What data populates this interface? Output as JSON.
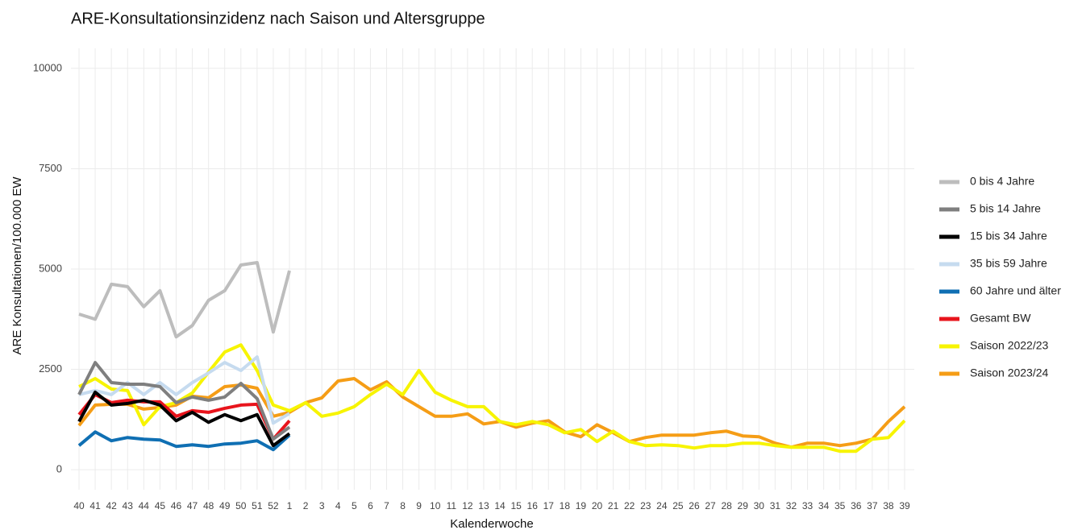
{
  "chart_data": {
    "type": "line",
    "title": "ARE-Konsultationsinzidenz nach Saison und Altersgruppe",
    "x_label": "Kalenderwoche",
    "y_label": "ARE Konsultationen/100.000 EW",
    "categories": [
      "40",
      "41",
      "42",
      "43",
      "44",
      "45",
      "46",
      "47",
      "48",
      "49",
      "50",
      "51",
      "52",
      "1",
      "2",
      "3",
      "4",
      "5",
      "6",
      "7",
      "8",
      "9",
      "10",
      "11",
      "12",
      "13",
      "14",
      "15",
      "16",
      "17",
      "18",
      "19",
      "20",
      "21",
      "22",
      "23",
      "24",
      "25",
      "26",
      "27",
      "28",
      "29",
      "30",
      "31",
      "32",
      "33",
      "34",
      "35",
      "36",
      "37",
      "38",
      "39"
    ],
    "ylim": [
      -500,
      10500
    ],
    "yticks": [
      0,
      2500,
      5000,
      7500,
      10000
    ],
    "grid": true,
    "legend": "right",
    "series": [
      {
        "name": "0 bis 4 Jahre",
        "color": "#bdbdbd",
        "values": [
          3875,
          3750,
          4620,
          4560,
          4060,
          4460,
          3310,
          3590,
          4220,
          4460,
          5100,
          5160,
          3430,
          4960,
          null,
          null,
          null,
          null,
          null,
          null,
          null,
          null,
          null,
          null,
          null,
          null,
          null,
          null,
          null,
          null,
          null,
          null,
          null,
          null,
          null,
          null,
          null,
          null,
          null,
          null,
          null,
          null,
          null,
          null,
          null,
          null,
          null,
          null,
          null,
          null,
          null,
          null
        ]
      },
      {
        "name": "5 bis 14 Jahre",
        "color": "#7f7f7f",
        "values": [
          1870,
          2670,
          2170,
          2130,
          2130,
          2070,
          1670,
          1810,
          1730,
          1810,
          2150,
          1770,
          760,
          1060,
          null,
          null,
          null,
          null,
          null,
          null,
          null,
          null,
          null,
          null,
          null,
          null,
          null,
          null,
          null,
          null,
          null,
          null,
          null,
          null,
          null,
          null,
          null,
          null,
          null,
          null,
          null,
          null,
          null,
          null,
          null,
          null,
          null,
          null,
          null,
          null,
          null,
          null
        ]
      },
      {
        "name": "15 bis 34 Jahre",
        "color": "#000000",
        "values": [
          1200,
          1930,
          1610,
          1650,
          1730,
          1610,
          1220,
          1430,
          1180,
          1370,
          1220,
          1370,
          600,
          900,
          null,
          null,
          null,
          null,
          null,
          null,
          null,
          null,
          null,
          null,
          null,
          null,
          null,
          null,
          null,
          null,
          null,
          null,
          null,
          null,
          null,
          null,
          null,
          null,
          null,
          null,
          null,
          null,
          null,
          null,
          null,
          null,
          null,
          null,
          null,
          null,
          null,
          null
        ]
      },
      {
        "name": "35 bis 59 Jahre",
        "color": "#c6dbef",
        "values": [
          1870,
          1970,
          1870,
          2170,
          1870,
          2170,
          1870,
          2170,
          2410,
          2670,
          2470,
          2810,
          1160,
          1400,
          null,
          null,
          null,
          null,
          null,
          null,
          null,
          null,
          null,
          null,
          null,
          null,
          null,
          null,
          null,
          null,
          null,
          null,
          null,
          null,
          null,
          null,
          null,
          null,
          null,
          null,
          null,
          null,
          null,
          null,
          null,
          null,
          null,
          null,
          null,
          null,
          null,
          null
        ]
      },
      {
        "name": "60 Jahre und älter",
        "color": "#0f6fb3",
        "values": [
          600,
          940,
          720,
          800,
          760,
          740,
          580,
          620,
          580,
          640,
          660,
          720,
          500,
          860,
          null,
          null,
          null,
          null,
          null,
          null,
          null,
          null,
          null,
          null,
          null,
          null,
          null,
          null,
          null,
          null,
          null,
          null,
          null,
          null,
          null,
          null,
          null,
          null,
          null,
          null,
          null,
          null,
          null,
          null,
          null,
          null,
          null,
          null,
          null,
          null,
          null,
          null
        ]
      },
      {
        "name": "Gesamt BW",
        "color": "#e8141c",
        "values": [
          1370,
          1870,
          1670,
          1730,
          1690,
          1690,
          1330,
          1470,
          1430,
          1530,
          1610,
          1630,
          760,
          1220,
          null,
          null,
          null,
          null,
          null,
          null,
          null,
          null,
          null,
          null,
          null,
          null,
          null,
          null,
          null,
          null,
          null,
          null,
          null,
          null,
          null,
          null,
          null,
          null,
          null,
          null,
          null,
          null,
          null,
          null,
          null,
          null,
          null,
          null,
          null,
          null,
          null,
          null
        ]
      },
      {
        "name": "Saison 2022/23",
        "color": "#f7f400",
        "values": [
          2070,
          2270,
          2010,
          1970,
          1120,
          1570,
          1670,
          1910,
          2430,
          2930,
          3110,
          2470,
          1610,
          1470,
          1670,
          1330,
          1410,
          1570,
          1870,
          2130,
          1870,
          2470,
          1930,
          1730,
          1570,
          1570,
          1200,
          1120,
          1200,
          1120,
          920,
          1000,
          700,
          960,
          700,
          600,
          620,
          600,
          540,
          600,
          600,
          660,
          660,
          600,
          560,
          560,
          560,
          460,
          460,
          760,
          800,
          1220
        ]
      },
      {
        "name": "Saison 2023/24",
        "color": "#f59d16",
        "values": [
          1100,
          1610,
          1630,
          1630,
          1510,
          1550,
          1610,
          1830,
          1790,
          2070,
          2110,
          2030,
          1330,
          1430,
          1670,
          1790,
          2210,
          2270,
          1990,
          2190,
          1810,
          1570,
          1330,
          1330,
          1390,
          1140,
          1200,
          1060,
          1160,
          1220,
          940,
          820,
          1120,
          920,
          700,
          800,
          860,
          860,
          860,
          920,
          960,
          840,
          820,
          660,
          560,
          660,
          660,
          600,
          660,
          760,
          1200,
          1570
        ]
      }
    ]
  }
}
